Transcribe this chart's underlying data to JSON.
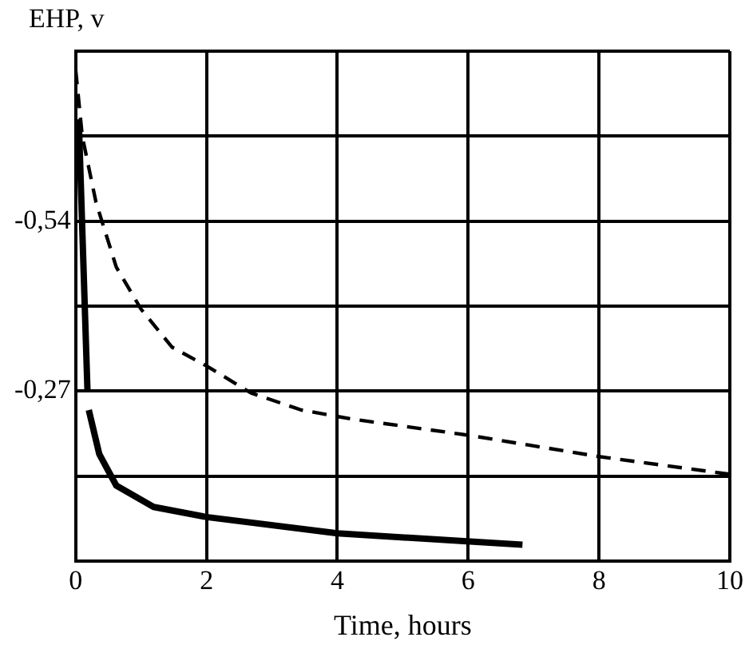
{
  "chart_data": {
    "type": "line",
    "ylabel": "EHP, v",
    "xlabel": "Time, hours",
    "xlim": [
      0,
      10
    ],
    "xticks": [
      0,
      2,
      4,
      6,
      8,
      10
    ],
    "ylim": [
      0,
      -0.81
    ],
    "yticks": [
      {
        "value": 0,
        "label": null
      },
      {
        "value": -0.135,
        "label": null
      },
      {
        "value": -0.27,
        "label": "-0,27"
      },
      {
        "value": -0.405,
        "label": null
      },
      {
        "value": -0.54,
        "label": "-0,54"
      },
      {
        "value": -0.675,
        "label": null
      },
      {
        "value": -0.81,
        "label": null
      }
    ],
    "grid": true,
    "marker": "none",
    "series": [
      {
        "color": "#000000",
        "line_style": "solid",
        "x": [
          0,
          0.05,
          0.18,
          null,
          0.2,
          0.36,
          0.62,
          1.19,
          2,
          4,
          6.03,
          6.83
        ],
        "values": [
          -0.7,
          -0.69,
          -0.27,
          null,
          -0.24,
          -0.17,
          -0.12,
          -0.086,
          -0.07,
          -0.044,
          -0.031,
          -0.026
        ]
      },
      {
        "color": "#000000",
        "line_style": "dashed",
        "x": [
          0,
          0.1,
          0.31,
          0.62,
          1,
          1.47,
          2,
          2.68,
          3.45,
          4.2,
          6,
          8,
          10
        ],
        "values": [
          -0.78,
          -0.675,
          -0.57,
          -0.467,
          -0.4,
          -0.34,
          -0.31,
          -0.267,
          -0.24,
          -0.226,
          -0.2,
          -0.166,
          -0.138
        ]
      }
    ]
  }
}
